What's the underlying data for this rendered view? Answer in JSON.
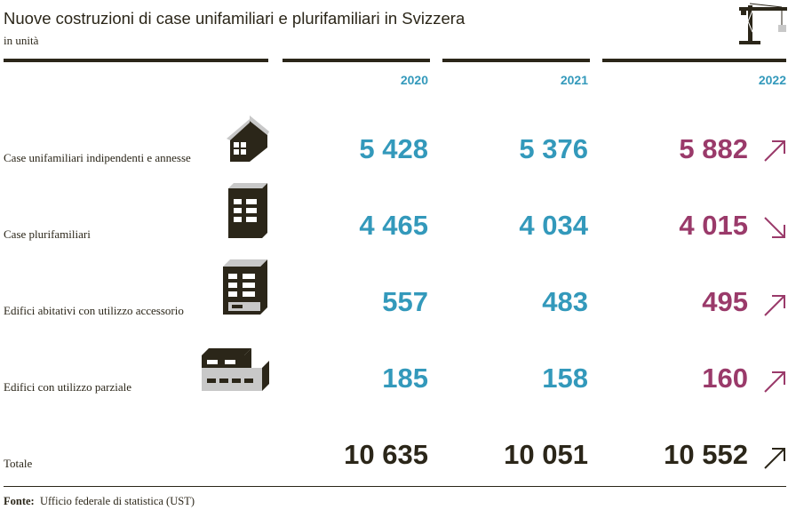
{
  "header": {
    "title": "Nuove costruzioni di case unifamiliari e plurifamiliari in Svizzera",
    "subtitle": "in unità"
  },
  "colors": {
    "dark": "#2b2619",
    "blue": "#3399bb",
    "red": "#9a3a6a",
    "icon_grey": "#c8c8c8"
  },
  "chart_data": {
    "type": "table",
    "columns": [
      "2020",
      "2021",
      "2022"
    ],
    "rows": [
      {
        "label": "Case unifamiliari indipendenti e annesse",
        "icon": "single-house-icon",
        "values": [
          "5 428",
          "5 376",
          "5 882"
        ],
        "trend": "up"
      },
      {
        "label": "Case plurifamiliari",
        "icon": "apartment-building-icon",
        "values": [
          "4 465",
          "4 034",
          "4 015"
        ],
        "trend": "down"
      },
      {
        "label": "Edifici abitativi con utilizzo accessorio",
        "icon": "mixed-use-building-icon",
        "values": [
          "557",
          "483",
          "495"
        ],
        "trend": "up"
      },
      {
        "label": "Edifici con utilizzo parziale",
        "icon": "partial-use-building-icon",
        "values": [
          "185",
          "158",
          "160"
        ],
        "trend": "up"
      }
    ],
    "total": {
      "label": "Totale",
      "values": [
        "10 635",
        "10 051",
        "10 552"
      ],
      "trend": "up"
    }
  },
  "footer": {
    "source_label": "Fonte:",
    "source_text": "Ufficio federale di statistica (UST)"
  }
}
